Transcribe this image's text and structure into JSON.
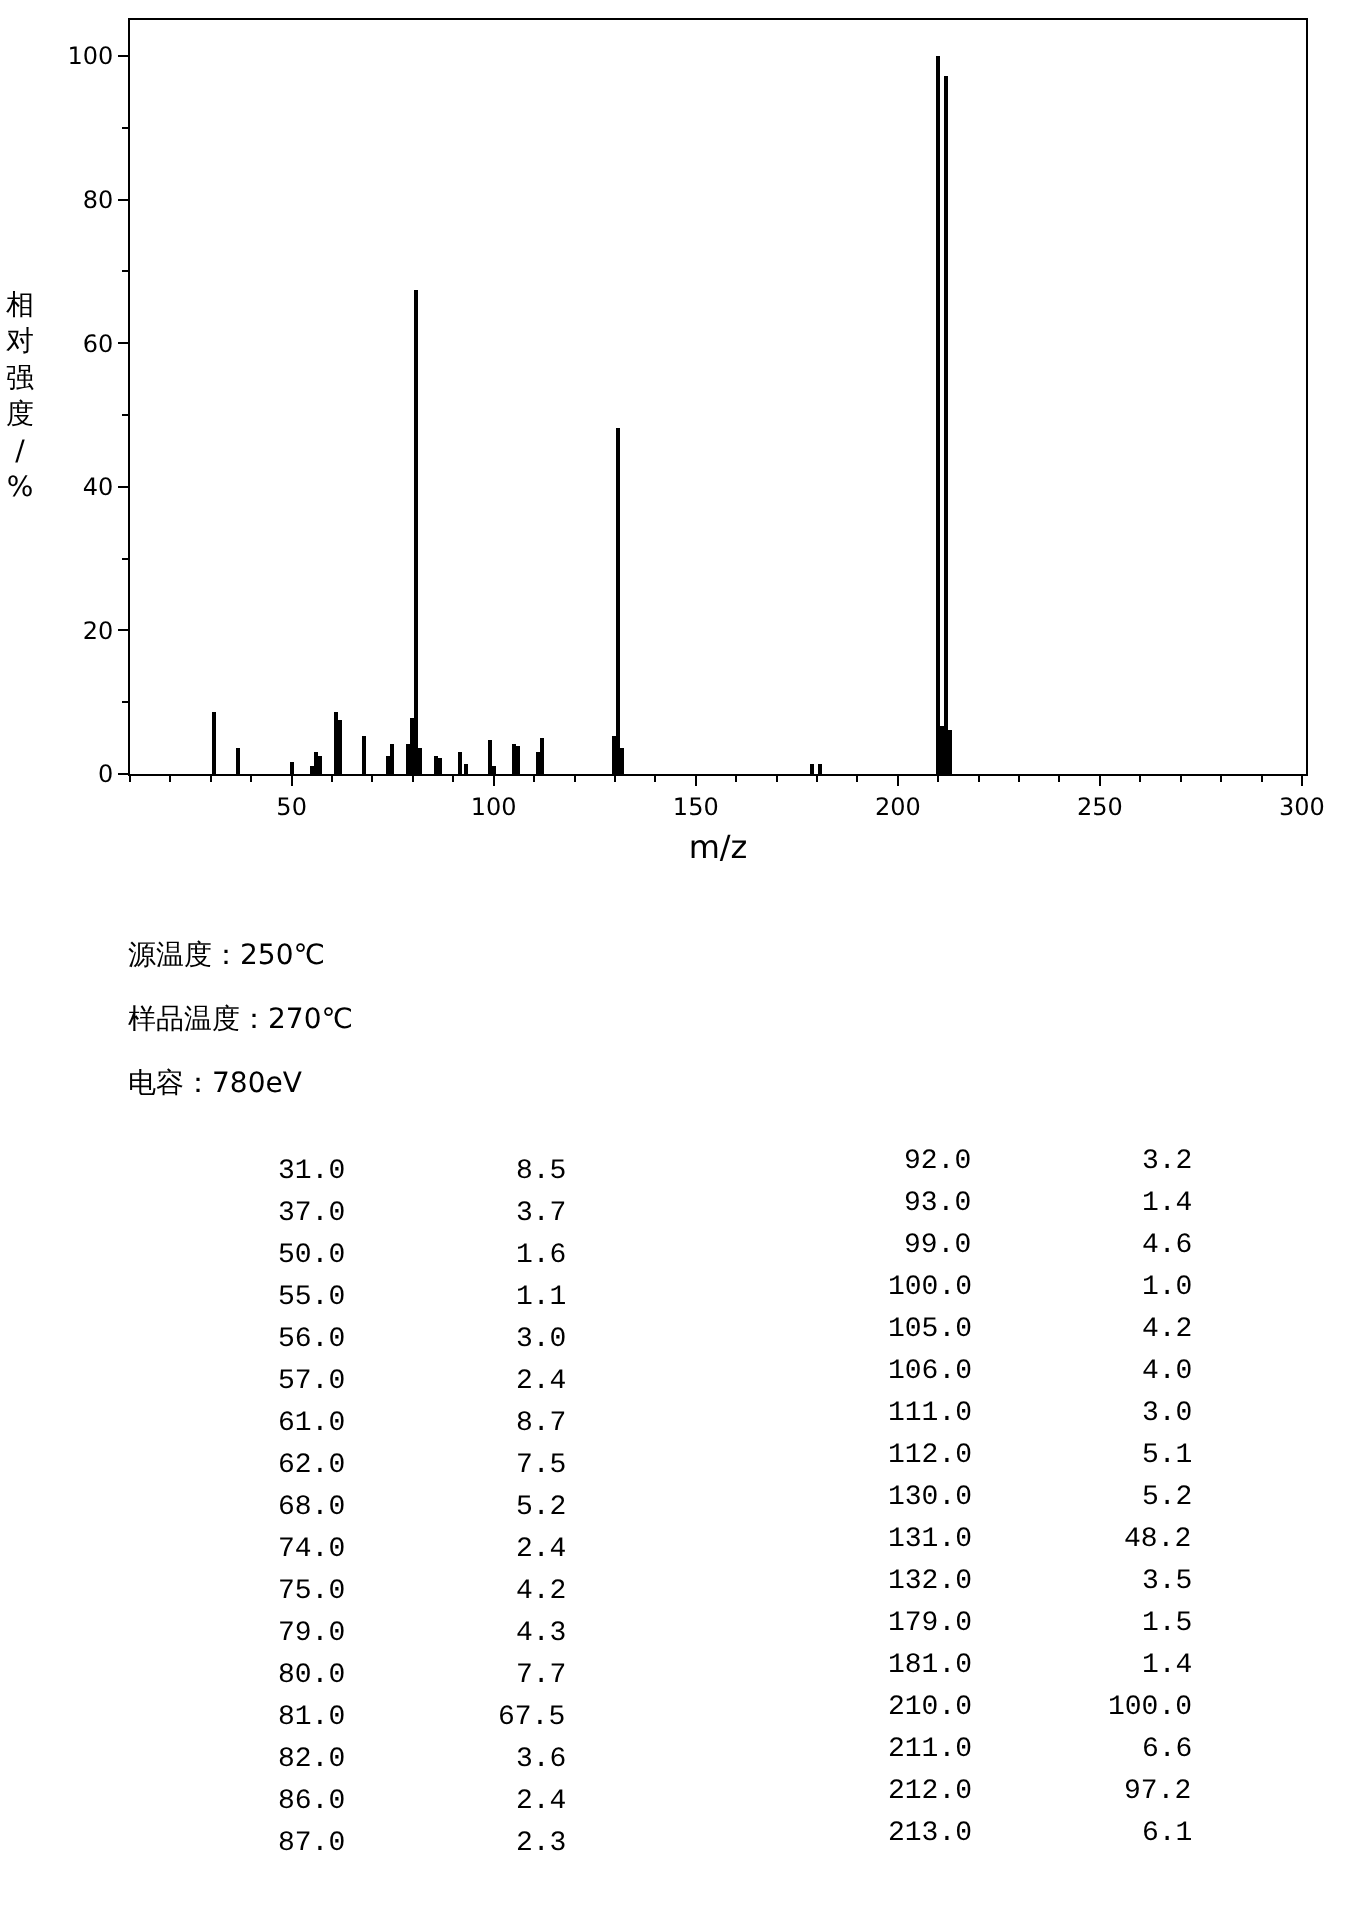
{
  "chart_data": [
    {
      "type": "bar",
      "xlabel": "m/z",
      "ylabel": "相对强度/%",
      "x": [
        31,
        37,
        50,
        55,
        56,
        57,
        61,
        62,
        68,
        74,
        75,
        79,
        80,
        81,
        82,
        86,
        87,
        92,
        93,
        99,
        100,
        105,
        106,
        111,
        112,
        130,
        131,
        132,
        179,
        181,
        210,
        211,
        212,
        213
      ],
      "values": [
        8.5,
        3.7,
        1.6,
        1.1,
        3.0,
        2.4,
        8.7,
        7.5,
        5.2,
        2.4,
        4.2,
        4.3,
        7.7,
        67.5,
        3.6,
        2.4,
        2.3,
        3.2,
        1.4,
        4.6,
        1.0,
        4.2,
        4.0,
        3.0,
        5.1,
        5.2,
        48.2,
        3.5,
        1.5,
        1.4,
        100.0,
        6.6,
        97.2,
        6.1
      ],
      "color": "#000000",
      "xlim": [
        10,
        301
      ],
      "xticks": [
        50,
        100,
        150,
        200,
        250,
        300
      ],
      "ylim": [
        0,
        105
      ],
      "yticks": [
        0,
        20,
        40,
        60,
        80,
        100
      ],
      "annotations": [
        "源温度：250℃",
        "样品温度：270℃",
        "电容：780eV"
      ]
    },
    {
      "type": "other",
      "annotations": [
        "31.0",
        "8.5",
        "37.0",
        "3.7",
        "50.0",
        "1.6",
        "55.0",
        "1.1",
        "56.0",
        "3.0",
        "57.0",
        "2.4",
        "61.0",
        "8.7",
        "62.0",
        "7.5",
        "68.0",
        "5.2",
        "74.0",
        "2.4",
        "75.0",
        "4.2",
        "79.0",
        "4.3",
        "80.0",
        "7.7",
        "81.0",
        "67.5",
        "82.0",
        "3.6",
        "86.0",
        "2.4",
        "87.0",
        "2.3",
        "92.0",
        "3.2",
        "93.0",
        "1.4",
        "99.0",
        "4.6",
        "100.0",
        "1.0",
        "105.0",
        "4.2",
        "106.0",
        "4.0",
        "111.0",
        "3.0",
        "112.0",
        "5.1",
        "130.0",
        "5.2",
        "131.0",
        "48.2",
        "132.0",
        "3.5",
        "179.0",
        "1.5",
        "181.0",
        "1.4",
        "210.0",
        "100.0",
        "211.0",
        "6.6",
        "212.0",
        "97.2",
        "213.0",
        "6.1"
      ]
    }
  ]
}
